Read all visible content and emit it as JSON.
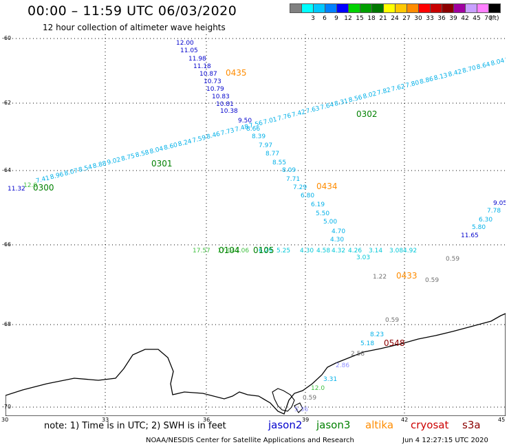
{
  "header": {
    "title": "00:00 – 11:59 UTC 06/03/2020",
    "subtitle": "12 hour collection of altimeter wave heights"
  },
  "legend": {
    "unit": "(ft)",
    "bins": [
      {
        "label": "",
        "color": "#808080"
      },
      {
        "label": "3",
        "color": "#00ffff"
      },
      {
        "label": "6",
        "color": "#00c8ff"
      },
      {
        "label": "9",
        "color": "#0080ff"
      },
      {
        "label": "12",
        "color": "#0000ff"
      },
      {
        "label": "15",
        "color": "#00d200"
      },
      {
        "label": "18",
        "color": "#00a000"
      },
      {
        "label": "21",
        "color": "#007800"
      },
      {
        "label": "24",
        "color": "#ffff00"
      },
      {
        "label": "27",
        "color": "#ffc800"
      },
      {
        "label": "30",
        "color": "#ff8c00"
      },
      {
        "label": "33",
        "color": "#ff0000"
      },
      {
        "label": "36",
        "color": "#c80000"
      },
      {
        "label": "39",
        "color": "#8c0000"
      },
      {
        "label": "42",
        "color": "#a000a0"
      },
      {
        "label": "45",
        "color": "#c8a0ff"
      },
      {
        "label": "70",
        "color": "#ff80ff"
      },
      {
        "label": "",
        "color": "#000000"
      }
    ]
  },
  "axes": {
    "lat_labels": [
      "-60",
      "-62",
      "-64",
      "-66",
      "-68",
      "-70"
    ],
    "lon_labels": [
      "30",
      "33",
      "36",
      "39",
      "42",
      "45"
    ]
  },
  "colors": {
    "jason2": "#0000cc",
    "jason3": "#008000",
    "altika": "#ff8c00",
    "cryosat": "#cc0000",
    "s3a": "#8b0000",
    "cyan": "#00b0e8",
    "teal": "#00c8d8",
    "gray": "#707070",
    "lightgreen": "#40c040",
    "lavender": "#9090ff"
  },
  "tracks": {
    "jason2_desc": {
      "color": "jason2",
      "values": [
        "12.00",
        "11.05",
        "11.98",
        "11.18",
        "10.87",
        "10.73",
        "10.79",
        "10.83",
        "10.81",
        "10.38",
        "9.50"
      ]
    },
    "cyan_desc": {
      "color": "cyan",
      "values": [
        "8.66",
        "8.39",
        "7.97",
        "8.77",
        "8.55",
        "8.09",
        "7.71",
        "7.29",
        "6.80",
        "6.19",
        "5.50",
        "5.00",
        "4.70",
        "4.30"
      ]
    },
    "cyan_asc": {
      "color": "cyan",
      "values": [
        "7.41",
        "8.96",
        "8.07",
        "8.54",
        "8.88",
        "9.02",
        "8.75",
        "8.58",
        "8.04",
        "8.60",
        "8.24",
        "7.59",
        "8.46",
        "7.73",
        "7.48",
        "7.56",
        "7.01",
        "7.76",
        "7.42",
        "7.63",
        "7.64",
        "8.31",
        "8.56",
        "8.02",
        "7.82",
        "7.62",
        "7.80",
        "8.86",
        "8.13",
        "8.42",
        "8.70",
        "8.64",
        "8.04",
        "8.26"
      ]
    },
    "left_values": {
      "v1": "11.32",
      "v2": "12.0"
    },
    "blue_east": {
      "values": [
        "9.05",
        "7.78",
        "6.30",
        "5.80",
        "11.65"
      ]
    },
    "zonal_66": {
      "values": [
        "17.57",
        "17.04",
        "7.06",
        "6.29",
        "5.25",
        "4.30",
        "4.58",
        "4.32",
        "4.26",
        "3.14",
        "3.08",
        "4.92",
        "3.03"
      ]
    },
    "gray_values": [
      "0.59",
      "1.22",
      "0.59",
      "0.59",
      "2.58",
      "0.59"
    ],
    "coast_values": [
      "8.23",
      "5.18",
      "2.86",
      "3.31",
      "12.0",
      "5.36"
    ]
  },
  "time_labels": [
    {
      "text": "0435",
      "color": "altika"
    },
    {
      "text": "0302",
      "color": "jason3"
    },
    {
      "text": "0301",
      "color": "jason3"
    },
    {
      "text": "0300",
      "color": "jason3"
    },
    {
      "text": "0434",
      "color": "altika"
    },
    {
      "text": "0104",
      "color": "jason3"
    },
    {
      "text": "0105",
      "color": "jason3"
    },
    {
      "text": "0433",
      "color": "altika"
    },
    {
      "text": "0548",
      "color": "s3a"
    }
  ],
  "footer": {
    "note": "note:  1) Time is in UTC;  2) SWH is in feet",
    "satellites": [
      {
        "name": "jason2",
        "color": "jason2"
      },
      {
        "name": "jason3",
        "color": "jason3"
      },
      {
        "name": "altika",
        "color": "altika"
      },
      {
        "name": "cryosat",
        "color": "cryosat"
      },
      {
        "name": "s3a",
        "color": "s3a"
      }
    ],
    "credit": "NOAA/NESDIS Center for Satellite Applications and Research",
    "timestamp": "Jun  4 12:27:15 UTC 2020"
  }
}
